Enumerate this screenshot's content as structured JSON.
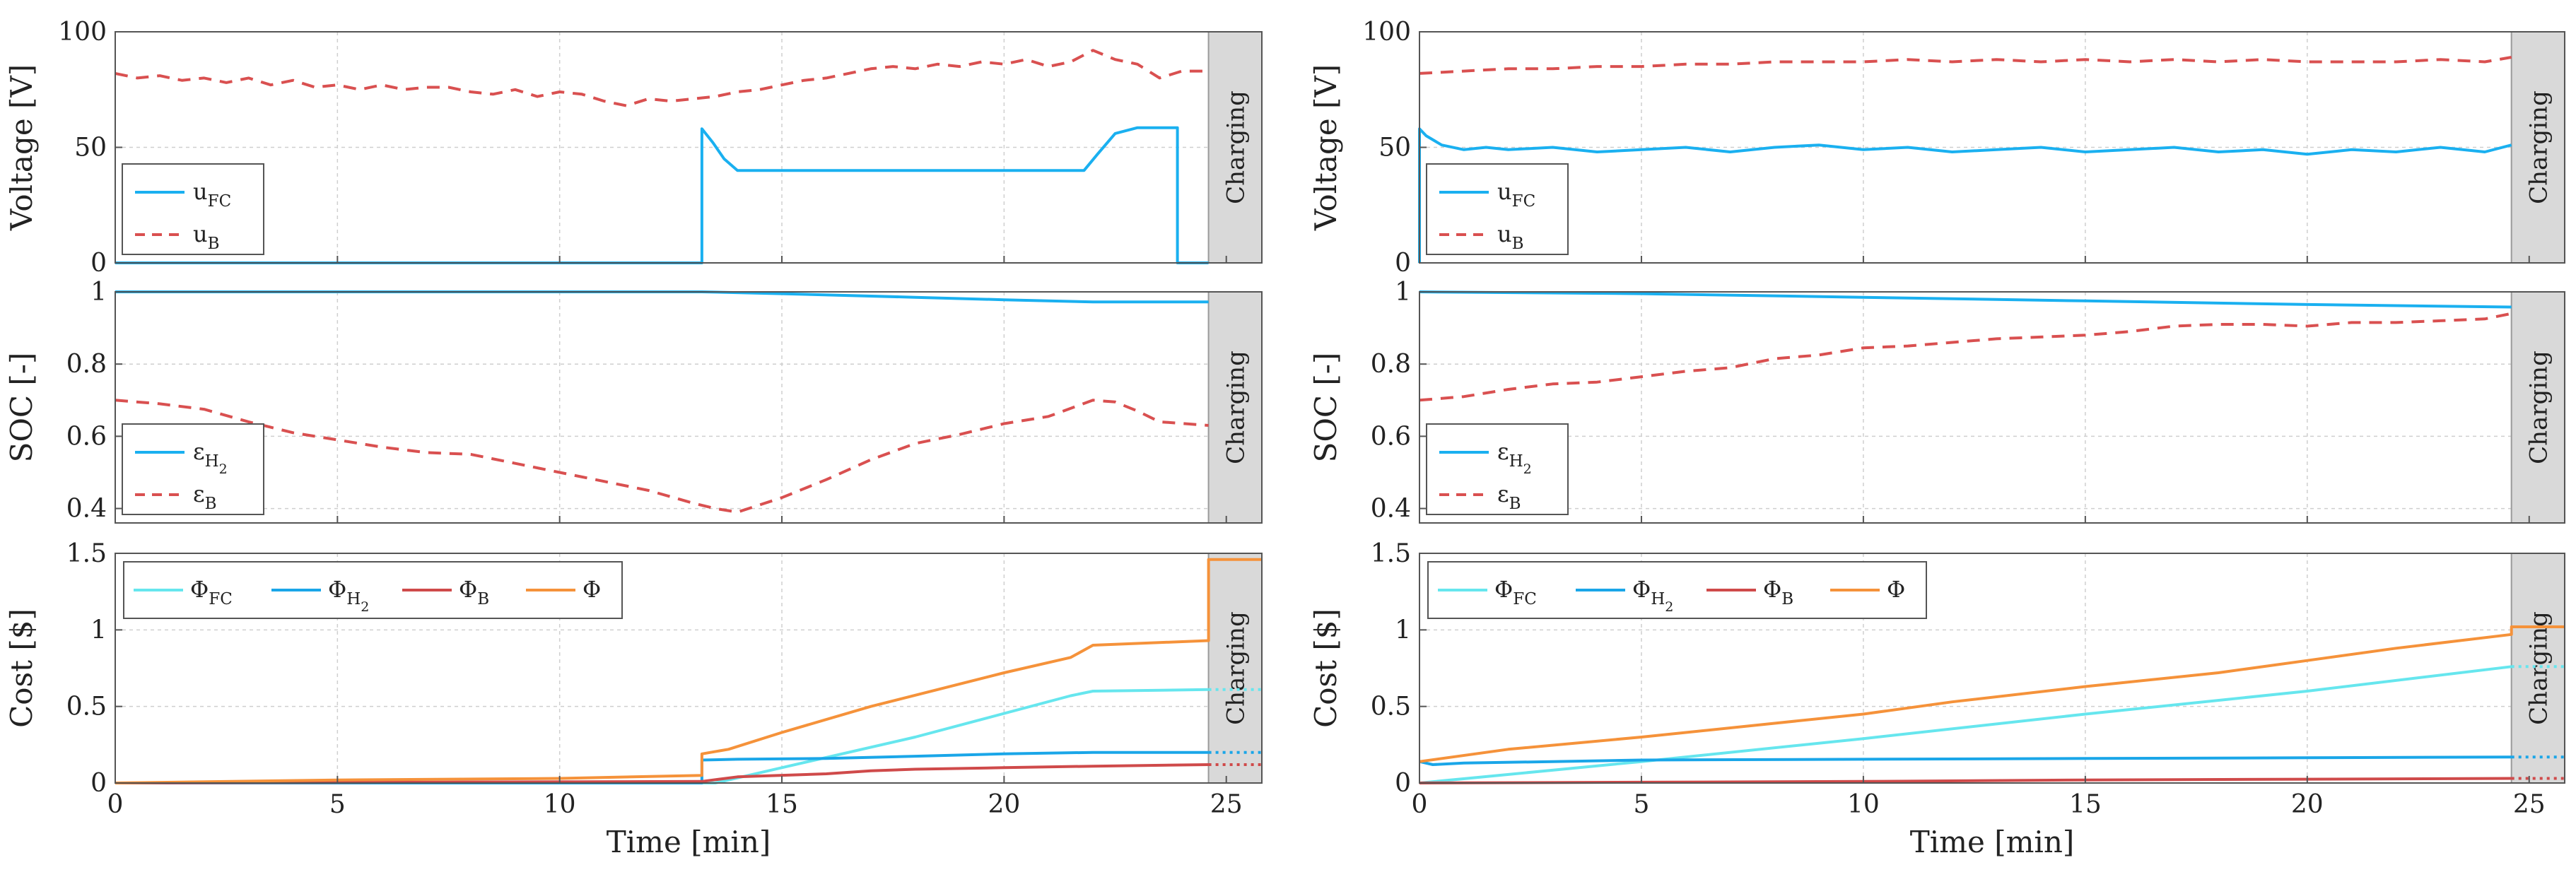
{
  "colors": {
    "fc": "#1ab0f0",
    "battery": "#d95050",
    "fc_cost": "#66e6ee",
    "h2_cost": "#1aa6e8",
    "b_cost": "#cf4a4a",
    "total_cost": "#f5923a",
    "charging_band": "#d9d9d9",
    "grid": "#cfcfcf",
    "axis": "#555555"
  },
  "charging_label": "Charging",
  "chart_data": [
    {
      "id": "left-voltage",
      "type": "line",
      "ylabel": "Voltage [V]",
      "xlim": [
        0,
        25.8
      ],
      "ylim": [
        0,
        100
      ],
      "xticks": [
        "0",
        "5",
        "10",
        "15",
        "20",
        "25"
      ],
      "yticks": [
        "0",
        "50",
        "100"
      ],
      "charging_start": 24.6,
      "legend": [
        {
          "base": "u",
          "sub": "FC",
          "style": "solid",
          "color": "fc"
        },
        {
          "base": "u",
          "sub": "B",
          "style": "dashed",
          "color": "battery"
        }
      ],
      "series": [
        {
          "name": "u_FC",
          "color": "fc",
          "style": "solid",
          "x": [
            0,
            13.2,
            13.2,
            13.45,
            13.7,
            14,
            21.8,
            22.1,
            22.5,
            23,
            23.9,
            23.9,
            24.6
          ],
          "y": [
            0,
            0,
            58,
            52,
            45,
            40,
            40,
            47,
            56,
            58.5,
            58.5,
            0,
            0
          ]
        },
        {
          "name": "u_B",
          "color": "battery",
          "style": "dashed",
          "x": [
            0,
            0.5,
            1,
            1.5,
            2,
            2.5,
            3,
            3.5,
            4,
            4.5,
            5,
            5.5,
            6,
            6.5,
            7,
            7.5,
            8,
            8.5,
            9,
            9.5,
            10,
            10.5,
            11,
            11.5,
            12,
            12.5,
            13,
            13.5,
            14,
            14.5,
            15,
            15.5,
            16,
            16.5,
            17,
            17.5,
            18,
            18.5,
            19,
            19.5,
            20,
            20.5,
            21,
            21.5,
            22,
            22.5,
            23,
            23.5,
            24,
            24.6
          ],
          "y": [
            82,
            80,
            81,
            79,
            80,
            78,
            80,
            77,
            79,
            76,
            77,
            75,
            77,
            75,
            76,
            76,
            74,
            73,
            75,
            72,
            74,
            73,
            70,
            68,
            71,
            70,
            71,
            72,
            74,
            75,
            77,
            79,
            80,
            82,
            84,
            85,
            84,
            86,
            85,
            87,
            86,
            88,
            85,
            87,
            92,
            88,
            86,
            80,
            83,
            83
          ]
        }
      ]
    },
    {
      "id": "left-soc",
      "type": "line",
      "ylabel": "SOC [-]",
      "xlim": [
        0,
        25.8
      ],
      "ylim": [
        0.36,
        1
      ],
      "xticks": [
        "0",
        "5",
        "10",
        "15",
        "20",
        "25"
      ],
      "yticks": [
        "0.4",
        "0.6",
        "0.8",
        "1"
      ],
      "charging_start": 24.6,
      "legend": [
        {
          "base": "ε",
          "sub": "H",
          "sub2": "2",
          "style": "solid",
          "color": "fc"
        },
        {
          "base": "ε",
          "sub": "B",
          "style": "dashed",
          "color": "battery"
        }
      ],
      "series": [
        {
          "name": "eps_H2",
          "color": "fc",
          "style": "solid",
          "x": [
            0,
            13.2,
            15,
            18,
            20,
            22,
            24.6
          ],
          "y": [
            1,
            1,
            0.995,
            0.985,
            0.978,
            0.972,
            0.972
          ]
        },
        {
          "name": "eps_B",
          "color": "battery",
          "style": "dashed",
          "x": [
            0,
            1,
            2,
            3,
            4,
            5,
            6,
            7,
            8,
            9,
            10,
            11,
            12,
            13,
            13.5,
            14,
            15,
            16,
            17,
            18,
            19,
            20,
            21,
            22,
            22.5,
            23,
            23.5,
            24.6
          ],
          "y": [
            0.7,
            0.69,
            0.675,
            0.64,
            0.61,
            0.59,
            0.57,
            0.555,
            0.55,
            0.525,
            0.5,
            0.475,
            0.45,
            0.415,
            0.4,
            0.39,
            0.43,
            0.48,
            0.535,
            0.58,
            0.605,
            0.635,
            0.655,
            0.7,
            0.695,
            0.67,
            0.64,
            0.63
          ]
        }
      ]
    },
    {
      "id": "left-cost",
      "type": "line",
      "ylabel": "Cost [$]",
      "xlabel": "Time [min]",
      "xlim": [
        0,
        25.8
      ],
      "ylim": [
        0,
        1.5
      ],
      "xticks": [
        "0",
        "5",
        "10",
        "15",
        "20",
        "25"
      ],
      "yticks": [
        "0",
        "0.5",
        "1",
        "1.5"
      ],
      "charging_start": 24.6,
      "legend": [
        {
          "base": "Φ",
          "sub": "FC",
          "style": "solid",
          "color": "fc_cost"
        },
        {
          "base": "Φ",
          "sub": "H",
          "sub2": "2",
          "style": "solid",
          "color": "h2_cost"
        },
        {
          "base": "Φ",
          "sub": "B",
          "style": "solid",
          "color": "b_cost"
        },
        {
          "base": "Φ",
          "style": "solid",
          "color": "total_cost"
        }
      ],
      "series": [
        {
          "name": "Phi_FC",
          "color": "fc_cost",
          "style": "solid",
          "x": [
            0,
            13.5,
            15,
            18,
            21.5,
            22,
            24.6
          ],
          "y": [
            0,
            0,
            0.1,
            0.3,
            0.57,
            0.6,
            0.61
          ],
          "tail": {
            "x": [
              24.6,
              25.8
            ],
            "y": [
              0.61,
              0.61
            ]
          }
        },
        {
          "name": "Phi_H2",
          "color": "h2_cost",
          "style": "solid",
          "x": [
            0,
            13.2,
            13.2,
            14,
            16,
            18,
            20,
            22,
            24.6
          ],
          "y": [
            0,
            0,
            0.15,
            0.155,
            0.16,
            0.175,
            0.19,
            0.2,
            0.2
          ],
          "tail": {
            "x": [
              24.6,
              25.8
            ],
            "y": [
              0.2,
              0.2
            ]
          }
        },
        {
          "name": "Phi_B",
          "color": "b_cost",
          "style": "solid",
          "x": [
            0,
            13.2,
            14,
            16,
            17,
            18,
            20,
            22,
            24.6
          ],
          "y": [
            0,
            0.01,
            0.04,
            0.06,
            0.08,
            0.09,
            0.1,
            0.11,
            0.12
          ],
          "tail": {
            "x": [
              24.6,
              25.8
            ],
            "y": [
              0.12,
              0.12
            ]
          }
        },
        {
          "name": "Phi",
          "color": "total_cost",
          "style": "solid",
          "x": [
            0,
            5,
            10,
            13.2,
            13.2,
            13.8,
            15,
            17,
            20,
            21.5,
            22,
            24.6,
            24.6,
            25.8
          ],
          "y": [
            0,
            0.02,
            0.03,
            0.05,
            0.19,
            0.22,
            0.33,
            0.5,
            0.72,
            0.82,
            0.9,
            0.93,
            1.46,
            1.46
          ]
        }
      ]
    },
    {
      "id": "right-voltage",
      "type": "line",
      "ylabel": "Voltage [V]",
      "xlim": [
        0,
        25.8
      ],
      "ylim": [
        0,
        100
      ],
      "xticks": [
        "0",
        "5",
        "10",
        "15",
        "20",
        "25"
      ],
      "yticks": [
        "0",
        "50",
        "100"
      ],
      "charging_start": 24.6,
      "legend": [
        {
          "base": "u",
          "sub": "FC",
          "style": "solid",
          "color": "fc"
        },
        {
          "base": "u",
          "sub": "B",
          "style": "dashed",
          "color": "battery"
        }
      ],
      "series": [
        {
          "name": "u_FC",
          "color": "fc",
          "style": "solid",
          "x": [
            0,
            0,
            0.15,
            0.5,
            1,
            1.5,
            2,
            3,
            4,
            5,
            6,
            7,
            8,
            9,
            10,
            11,
            12,
            13,
            14,
            15,
            16,
            17,
            18,
            19,
            20,
            21,
            22,
            23,
            24,
            24.6
          ],
          "y": [
            0,
            58,
            55,
            51,
            49,
            50,
            49,
            50,
            48,
            49,
            50,
            48,
            50,
            51,
            49,
            50,
            48,
            49,
            50,
            48,
            49,
            50,
            48,
            49,
            47,
            49,
            48,
            50,
            48,
            51
          ]
        },
        {
          "name": "u_B",
          "color": "battery",
          "style": "dashed",
          "x": [
            0,
            1,
            2,
            3,
            4,
            5,
            6,
            7,
            8,
            9,
            10,
            11,
            12,
            13,
            14,
            15,
            16,
            17,
            18,
            19,
            20,
            21,
            22,
            23,
            24,
            24.6
          ],
          "y": [
            82,
            83,
            84,
            84,
            85,
            85,
            86,
            86,
            87,
            87,
            87,
            88,
            87,
            88,
            87,
            88,
            87,
            88,
            87,
            88,
            87,
            87,
            87,
            88,
            87,
            89
          ]
        }
      ]
    },
    {
      "id": "right-soc",
      "type": "line",
      "ylabel": "SOC [-]",
      "xlim": [
        0,
        25.8
      ],
      "ylim": [
        0.36,
        1
      ],
      "xticks": [
        "0",
        "5",
        "10",
        "15",
        "20",
        "25"
      ],
      "yticks": [
        "0.4",
        "0.6",
        "0.8",
        "1"
      ],
      "charging_start": 24.6,
      "legend": [
        {
          "base": "ε",
          "sub": "H",
          "sub2": "2",
          "style": "solid",
          "color": "fc"
        },
        {
          "base": "ε",
          "sub": "B",
          "style": "dashed",
          "color": "battery"
        }
      ],
      "series": [
        {
          "name": "eps_H2",
          "color": "fc",
          "style": "solid",
          "x": [
            0,
            5,
            10,
            15,
            20,
            24.6
          ],
          "y": [
            1,
            0.995,
            0.985,
            0.975,
            0.965,
            0.958
          ]
        },
        {
          "name": "eps_B",
          "color": "battery",
          "style": "dashed",
          "x": [
            0,
            1,
            2,
            3,
            4,
            5,
            6,
            7,
            8,
            9,
            10,
            11,
            12,
            13,
            14,
            15,
            16,
            17,
            18,
            19,
            20,
            21,
            22,
            23,
            24,
            24.6
          ],
          "y": [
            0.7,
            0.71,
            0.73,
            0.745,
            0.75,
            0.765,
            0.78,
            0.79,
            0.815,
            0.825,
            0.845,
            0.85,
            0.86,
            0.87,
            0.875,
            0.88,
            0.89,
            0.905,
            0.91,
            0.91,
            0.905,
            0.915,
            0.915,
            0.92,
            0.925,
            0.94
          ]
        }
      ]
    },
    {
      "id": "right-cost",
      "type": "line",
      "ylabel": "Cost [$]",
      "xlabel": "Time [min]",
      "xlim": [
        0,
        25.8
      ],
      "ylim": [
        0,
        1.5
      ],
      "xticks": [
        "0",
        "5",
        "10",
        "15",
        "20",
        "25"
      ],
      "yticks": [
        "0",
        "0.5",
        "1",
        "1.5"
      ],
      "charging_start": 24.6,
      "legend": [
        {
          "base": "Φ",
          "sub": "FC",
          "style": "solid",
          "color": "fc_cost"
        },
        {
          "base": "Φ",
          "sub": "H",
          "sub2": "2",
          "style": "solid",
          "color": "h2_cost"
        },
        {
          "base": "Φ",
          "sub": "B",
          "style": "solid",
          "color": "b_cost"
        },
        {
          "base": "Φ",
          "style": "solid",
          "color": "total_cost"
        }
      ],
      "series": [
        {
          "name": "Phi_FC",
          "color": "fc_cost",
          "style": "solid",
          "x": [
            0,
            5,
            10,
            15,
            20,
            24.6
          ],
          "y": [
            0,
            0.14,
            0.29,
            0.45,
            0.6,
            0.76
          ],
          "tail": {
            "x": [
              24.6,
              25.8
            ],
            "y": [
              0.76,
              0.76
            ]
          }
        },
        {
          "name": "Phi_H2",
          "color": "h2_cost",
          "style": "solid",
          "x": [
            0,
            0.3,
            1,
            3,
            5,
            10,
            15,
            20,
            24.6
          ],
          "y": [
            0.14,
            0.12,
            0.13,
            0.14,
            0.15,
            0.155,
            0.16,
            0.165,
            0.17
          ],
          "tail": {
            "x": [
              24.6,
              25.8
            ],
            "y": [
              0.17,
              0.17
            ]
          }
        },
        {
          "name": "Phi_B",
          "color": "b_cost",
          "style": "solid",
          "x": [
            0,
            5,
            10,
            15,
            20,
            24.6
          ],
          "y": [
            0,
            0.005,
            0.01,
            0.02,
            0.025,
            0.03
          ],
          "tail": {
            "x": [
              24.6,
              25.8
            ],
            "y": [
              0.03,
              0.03
            ]
          }
        },
        {
          "name": "Phi",
          "color": "total_cost",
          "style": "solid",
          "x": [
            0,
            2,
            5,
            8,
            10,
            12,
            15,
            18,
            20,
            22,
            24.6,
            24.6,
            25.8
          ],
          "y": [
            0.14,
            0.22,
            0.3,
            0.39,
            0.45,
            0.53,
            0.63,
            0.72,
            0.8,
            0.88,
            0.97,
            1.02,
            1.02
          ]
        }
      ]
    }
  ]
}
